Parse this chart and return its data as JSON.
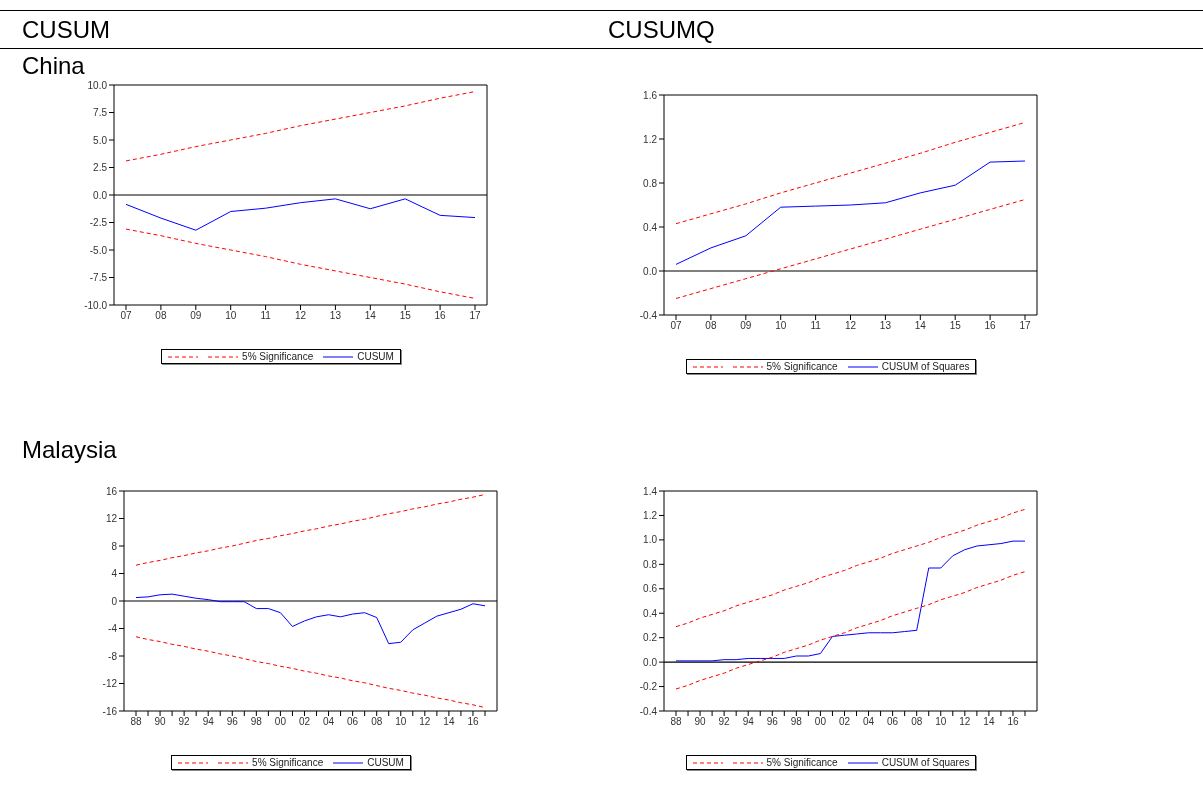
{
  "chart_data": [
    {
      "type": "line",
      "title": "CUSUM",
      "subtitle": "China",
      "categories": [
        "07",
        "08",
        "09",
        "10",
        "11",
        "12",
        "13",
        "14",
        "15",
        "16",
        "17"
      ],
      "series": [
        {
          "name": "CUSUM",
          "color": "#0000ff",
          "line_style": "solid",
          "values": [
            -0.85,
            -2.1,
            -3.2,
            -1.5,
            -1.2,
            -0.7,
            -0.35,
            -1.25,
            -0.35,
            -1.85,
            -2.05
          ]
        },
        {
          "name": "5% Significance",
          "color": "#ff0000",
          "line_style": "dashed",
          "values": [
            3.1,
            3.7,
            4.4,
            5.0,
            5.6,
            6.3,
            6.9,
            7.5,
            8.1,
            8.8,
            9.4
          ]
        },
        {
          "color": "#ff0000",
          "line_style": "dashed",
          "values": [
            -3.1,
            -3.7,
            -4.4,
            -5.0,
            -5.6,
            -6.3,
            -6.9,
            -7.5,
            -8.1,
            -8.8,
            -9.4
          ]
        }
      ],
      "ylim": [
        -10,
        10
      ],
      "yticks": [
        {
          "value": -10,
          "label": "-10.0"
        },
        {
          "value": -7.5,
          "label": "-7.5"
        },
        {
          "value": -5,
          "label": "-5.0"
        },
        {
          "value": -2.5,
          "label": "-2.5"
        },
        {
          "value": 0,
          "label": "0.0"
        },
        {
          "value": 2.5,
          "label": "2.5"
        },
        {
          "value": 5,
          "label": "5.0"
        },
        {
          "value": 7.5,
          "label": "7.5"
        },
        {
          "value": 10,
          "label": "10.0"
        }
      ],
      "ref_lines": [
        {
          "axis": "y",
          "value": 0,
          "color": "#000000"
        }
      ],
      "legend": "bottom",
      "marker": "none",
      "grid": false
    },
    {
      "type": "line",
      "title": "CUSUMQ",
      "categories": [
        "07",
        "08",
        "09",
        "10",
        "11",
        "12",
        "13",
        "14",
        "15",
        "16",
        "17"
      ],
      "series": [
        {
          "name": "CUSUM  of Squares",
          "color": "#0000ff",
          "line_style": "solid",
          "values": [
            0.06,
            0.21,
            0.32,
            0.58,
            0.59,
            0.6,
            0.62,
            0.71,
            0.78,
            0.99,
            1.0
          ]
        },
        {
          "name": "5% Significance",
          "color": "#ff0000",
          "line_style": "dashed",
          "values": [
            0.43,
            0.52,
            0.61,
            0.71,
            0.8,
            0.89,
            0.98,
            1.07,
            1.17,
            1.26,
            1.35
          ]
        },
        {
          "color": "#ff0000",
          "line_style": "dashed",
          "values": [
            -0.25,
            -0.16,
            -0.07,
            0.02,
            0.11,
            0.2,
            0.29,
            0.38,
            0.47,
            0.56,
            0.65
          ]
        }
      ],
      "ylim": [
        -0.4,
        1.6
      ],
      "yticks": [
        {
          "value": -0.4,
          "label": "-0.4"
        },
        {
          "value": 0,
          "label": "0.0"
        },
        {
          "value": 0.4,
          "label": "0.4"
        },
        {
          "value": 0.8,
          "label": "0.8"
        },
        {
          "value": 1.2,
          "label": "1.2"
        },
        {
          "value": 1.6,
          "label": "1.6"
        }
      ],
      "ref_lines": [
        {
          "axis": "y",
          "value": 0,
          "color": "#000000"
        }
      ],
      "legend": "bottom",
      "marker": "none",
      "grid": false
    },
    {
      "type": "line",
      "subtitle": "Malaysia",
      "categories": [
        "88",
        null,
        "90",
        null,
        "92",
        null,
        "94",
        null,
        "96",
        null,
        "98",
        null,
        "00",
        null,
        "02",
        null,
        "04",
        null,
        "06",
        null,
        "08",
        null,
        "10",
        null,
        "12",
        null,
        "14",
        null,
        "16",
        null
      ],
      "series": [
        {
          "name": "CUSUM",
          "color": "#0000ff",
          "line_style": "solid",
          "values": [
            0.5,
            0.6,
            0.9,
            1.0,
            0.7,
            0.4,
            0.2,
            -0.1,
            -0.1,
            -0.1,
            -1.1,
            -1.1,
            -1.7,
            -3.7,
            -2.9,
            -2.3,
            -2.0,
            -2.3,
            -1.9,
            -1.7,
            -2.4,
            -6.2,
            -6.0,
            -4.2,
            -3.2,
            -2.2,
            -1.7,
            -1.2,
            -0.4,
            -0.7
          ]
        },
        {
          "name": "5% Significance",
          "color": "#ff0000",
          "line_style": "dashed",
          "values": [
            5.2,
            5.6,
            5.9,
            6.3,
            6.6,
            7.0,
            7.3,
            7.7,
            8.0,
            8.4,
            8.8,
            9.1,
            9.5,
            9.8,
            10.2,
            10.5,
            10.9,
            11.2,
            11.6,
            11.9,
            12.3,
            12.7,
            13.0,
            13.4,
            13.7,
            14.1,
            14.4,
            14.8,
            15.1,
            15.5
          ]
        },
        {
          "color": "#ff0000",
          "line_style": "dashed",
          "values": [
            -5.2,
            -5.6,
            -5.9,
            -6.3,
            -6.6,
            -7.0,
            -7.3,
            -7.7,
            -8.0,
            -8.4,
            -8.8,
            -9.1,
            -9.5,
            -9.8,
            -10.2,
            -10.5,
            -10.9,
            -11.2,
            -11.6,
            -11.9,
            -12.3,
            -12.7,
            -13.0,
            -13.4,
            -13.7,
            -14.1,
            -14.4,
            -14.8,
            -15.1,
            -15.5
          ]
        }
      ],
      "ylim": [
        -16,
        16
      ],
      "yticks": [
        -16,
        -12,
        -8,
        -4,
        0,
        4,
        8,
        12,
        16
      ],
      "ref_lines": [
        {
          "axis": "y",
          "value": 0,
          "color": "#000000"
        }
      ],
      "legend": "bottom",
      "marker": "none",
      "grid": false
    },
    {
      "type": "line",
      "categories": [
        "88",
        null,
        "90",
        null,
        "92",
        null,
        "94",
        null,
        "96",
        null,
        "98",
        null,
        "00",
        null,
        "02",
        null,
        "04",
        null,
        "06",
        null,
        "08",
        null,
        "10",
        null,
        "12",
        null,
        "14",
        null,
        "16",
        null
      ],
      "series": [
        {
          "name": "CUSUM  of Squares",
          "color": "#0000ff",
          "line_style": "solid",
          "values": [
            0.01,
            0.01,
            0.01,
            0.01,
            0.02,
            0.02,
            0.03,
            0.03,
            0.03,
            0.03,
            0.05,
            0.05,
            0.07,
            0.21,
            0.22,
            0.23,
            0.24,
            0.24,
            0.24,
            0.25,
            0.26,
            0.77,
            0.77,
            0.87,
            0.92,
            0.95,
            0.96,
            0.97,
            0.99,
            0.99
          ]
        },
        {
          "name": "5% Significance",
          "color": "#ff0000",
          "line_style": "dashed",
          "values": [
            0.29,
            0.32,
            0.36,
            0.39,
            0.42,
            0.46,
            0.49,
            0.52,
            0.55,
            0.59,
            0.62,
            0.65,
            0.69,
            0.72,
            0.75,
            0.79,
            0.82,
            0.85,
            0.89,
            0.92,
            0.95,
            0.98,
            1.02,
            1.05,
            1.08,
            1.12,
            1.15,
            1.18,
            1.22,
            1.25
          ]
        },
        {
          "color": "#ff0000",
          "line_style": "dashed",
          "values": [
            -0.22,
            -0.19,
            -0.15,
            -0.12,
            -0.09,
            -0.05,
            -0.02,
            0.01,
            0.04,
            0.08,
            0.11,
            0.14,
            0.18,
            0.21,
            0.24,
            0.28,
            0.31,
            0.34,
            0.38,
            0.41,
            0.44,
            0.47,
            0.51,
            0.54,
            0.57,
            0.61,
            0.64,
            0.67,
            0.71,
            0.74
          ]
        }
      ],
      "ylim": [
        -0.4,
        1.4
      ],
      "yticks": [
        {
          "value": -0.4,
          "label": "-0.4"
        },
        {
          "value": -0.2,
          "label": "-0.2"
        },
        {
          "value": 0,
          "label": "0.0"
        },
        {
          "value": 0.2,
          "label": "0.2"
        },
        {
          "value": 0.4,
          "label": "0.4"
        },
        {
          "value": 0.6,
          "label": "0.6"
        },
        {
          "value": 0.8,
          "label": "0.8"
        },
        {
          "value": 1.0,
          "label": "1.0"
        },
        {
          "value": 1.2,
          "label": "1.2"
        },
        {
          "value": 1.4,
          "label": "1.4"
        }
      ],
      "ref_lines": [
        {
          "axis": "y",
          "value": 0,
          "color": "#000000"
        }
      ],
      "legend": "bottom",
      "marker": "none",
      "grid": false
    }
  ]
}
